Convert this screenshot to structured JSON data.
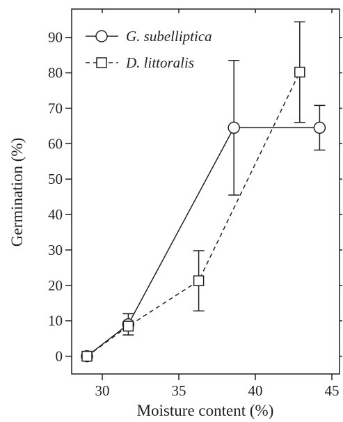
{
  "chart_data": {
    "type": "line",
    "xlabel": "Moisture content (%)",
    "ylabel": "Germination (%)",
    "xlim": [
      28,
      45.5
    ],
    "ylim": [
      -5,
      98
    ],
    "x_ticks": [
      30,
      35,
      40,
      45
    ],
    "y_ticks": [
      0,
      10,
      20,
      30,
      40,
      50,
      60,
      70,
      80,
      90
    ],
    "grid": false,
    "legend_position": "top-left",
    "series": [
      {
        "name": "G. subelliptica",
        "marker": "circle",
        "line_style": "solid",
        "points": [
          {
            "x": 29.0,
            "y": 0,
            "err": 0
          },
          {
            "x": 31.7,
            "y": 9,
            "err": 3
          },
          {
            "x": 38.6,
            "y": 64.5,
            "err": 19
          },
          {
            "x": 44.2,
            "y": 64.5,
            "err": 6.3
          }
        ]
      },
      {
        "name": "D. littoralis",
        "marker": "square",
        "line_style": "dashed",
        "points": [
          {
            "x": 29.0,
            "y": 0,
            "err": 0
          },
          {
            "x": 31.7,
            "y": 8.5,
            "err": 0
          },
          {
            "x": 36.3,
            "y": 21.3,
            "err": 8.5
          },
          {
            "x": 42.9,
            "y": 80.2,
            "err": 14.2
          }
        ]
      }
    ]
  },
  "colors": {
    "ink": "#231f20",
    "background": "#ffffff"
  }
}
